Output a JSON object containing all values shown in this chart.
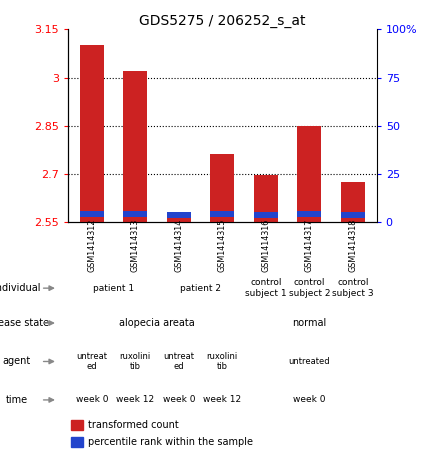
{
  "title": "GDS5275 / 206252_s_at",
  "samples": [
    "GSM1414312",
    "GSM1414313",
    "GSM1414314",
    "GSM1414315",
    "GSM1414316",
    "GSM1414317",
    "GSM1414318"
  ],
  "red_values": [
    3.1,
    3.02,
    2.575,
    2.76,
    2.695,
    2.85,
    2.675
  ],
  "blue_values": [
    2.575,
    2.575,
    2.57,
    2.575,
    2.57,
    2.575,
    2.57
  ],
  "ylim_left": [
    2.55,
    3.15
  ],
  "ylim_right": [
    0,
    100
  ],
  "yticks_left": [
    2.55,
    2.7,
    2.85,
    3.0,
    3.15
  ],
  "yticks_right": [
    0,
    25,
    50,
    75,
    100
  ],
  "ytick_labels_left": [
    "2.55",
    "2.7",
    "2.85",
    "3",
    "3.15"
  ],
  "ytick_labels_right": [
    "0",
    "25",
    "50",
    "75",
    "100%"
  ],
  "individual_groups": [
    {
      "label": "patient 1",
      "cols": [
        0,
        1
      ],
      "color": "#c8eec8"
    },
    {
      "label": "patient 2",
      "cols": [
        2,
        3
      ],
      "color": "#c8eec8"
    },
    {
      "label": "control\nsubject 1",
      "cols": [
        4
      ],
      "color": "#aaeebb"
    },
    {
      "label": "control\nsubject 2",
      "cols": [
        5
      ],
      "color": "#aaeebb"
    },
    {
      "label": "control\nsubject 3",
      "cols": [
        6
      ],
      "color": "#aaeebb"
    }
  ],
  "disease_groups": [
    {
      "label": "alopecia areata",
      "cols": [
        0,
        1,
        2,
        3
      ],
      "color": "#88aaee"
    },
    {
      "label": "normal",
      "cols": [
        4,
        5,
        6
      ],
      "color": "#88ddbb"
    }
  ],
  "agent_groups": [
    {
      "label": "untreat\ned",
      "cols": [
        0
      ],
      "color": "#ffccee"
    },
    {
      "label": "ruxolini\ntib",
      "cols": [
        1
      ],
      "color": "#dd99cc"
    },
    {
      "label": "untreat\ned",
      "cols": [
        2
      ],
      "color": "#ffccee"
    },
    {
      "label": "ruxolini\ntib",
      "cols": [
        3
      ],
      "color": "#dd99cc"
    },
    {
      "label": "untreated",
      "cols": [
        4,
        5,
        6
      ],
      "color": "#ffccee"
    }
  ],
  "time_groups": [
    {
      "label": "week 0",
      "cols": [
        0
      ],
      "color": "#f0c878"
    },
    {
      "label": "week 12",
      "cols": [
        1
      ],
      "color": "#e0a855"
    },
    {
      "label": "week 0",
      "cols": [
        2
      ],
      "color": "#f0c878"
    },
    {
      "label": "week 12",
      "cols": [
        3
      ],
      "color": "#e0a855"
    },
    {
      "label": "week 0",
      "cols": [
        4,
        5,
        6
      ],
      "color": "#f0c878"
    }
  ],
  "bar_width": 0.55,
  "sample_bg": "#cccccc",
  "legend_red": "transformed count",
  "legend_blue": "percentile rank within the sample"
}
